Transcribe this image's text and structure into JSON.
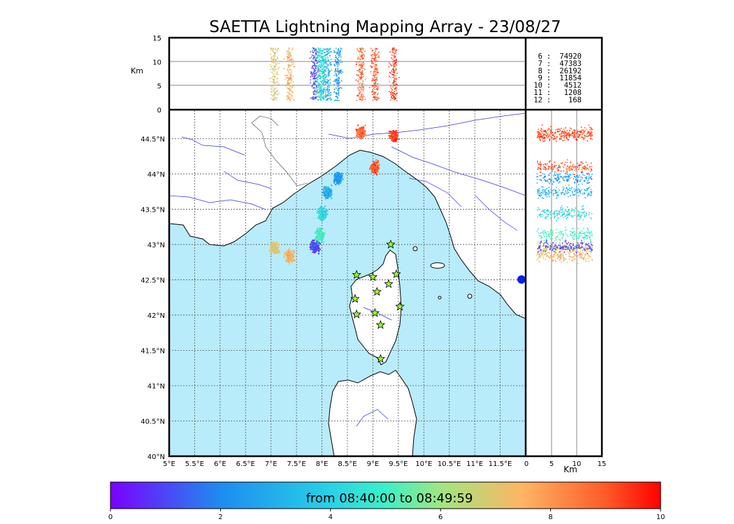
{
  "title": "SAETTA Lightning Mapping Array - 23/08/27",
  "colorbar": {
    "label": "from 08:40:00 to 08:49:59",
    "ticks": [
      "0",
      "2",
      "4",
      "6",
      "8",
      "10"
    ],
    "range": [
      0,
      10
    ]
  },
  "colors": {
    "sea": "#b8ecfb",
    "coast": "#000000",
    "river": "#3333dd",
    "grid": "#555555",
    "station_fill": "#99ff33",
    "legend_highlight": "#ff0000"
  },
  "chart_data": [
    {
      "type": "scatter",
      "panel": "map",
      "description_free": true,
      "x_ticks": [
        "5°E",
        "5.5°E",
        "6°E",
        "6.5°E",
        "7°E",
        "7.5°E",
        "8°E",
        "8.5°E",
        "9°E",
        "9.5°E",
        "10°E",
        "10.5°E",
        "11°E",
        "11.5°E"
      ],
      "y_ticks": [
        "40°N",
        "40.5°N",
        "41°N",
        "41.5°N",
        "42°N",
        "42.5°N",
        "43°N",
        "43.5°N",
        "44°N",
        "44.5°N"
      ],
      "xlim": [
        5.0,
        12.0
      ],
      "ylim": [
        40.0,
        44.9
      ],
      "grid": true,
      "stations": [
        {
          "lon": 9.35,
          "lat": 43.0
        },
        {
          "lon": 8.68,
          "lat": 42.57
        },
        {
          "lon": 9.0,
          "lat": 42.54
        },
        {
          "lon": 9.46,
          "lat": 42.58
        },
        {
          "lon": 9.31,
          "lat": 42.44
        },
        {
          "lon": 9.08,
          "lat": 42.33
        },
        {
          "lon": 8.65,
          "lat": 42.23
        },
        {
          "lon": 9.53,
          "lat": 42.12
        },
        {
          "lon": 8.68,
          "lat": 42.01
        },
        {
          "lon": 9.04,
          "lat": 42.03
        },
        {
          "lon": 9.15,
          "lat": 41.86
        },
        {
          "lon": 9.15,
          "lat": 41.38
        }
      ],
      "clusters": [
        {
          "lon": 7.35,
          "lat": 42.85,
          "time": 7.5
        },
        {
          "lon": 7.05,
          "lat": 42.95,
          "time": 7.0
        },
        {
          "lon": 7.85,
          "lat": 42.98,
          "time": 1.0
        },
        {
          "lon": 7.95,
          "lat": 43.15,
          "time": 5.0
        },
        {
          "lon": 8.0,
          "lat": 43.45,
          "time": 4.2
        },
        {
          "lon": 8.1,
          "lat": 43.75,
          "time": 3.0
        },
        {
          "lon": 8.3,
          "lat": 43.95,
          "time": 2.5
        },
        {
          "lon": 9.03,
          "lat": 44.1,
          "time": 9.0
        },
        {
          "lon": 8.75,
          "lat": 44.6,
          "time": 8.8
        },
        {
          "lon": 9.4,
          "lat": 44.55,
          "time": 9.2
        }
      ]
    },
    {
      "type": "scatter",
      "panel": "lon-altitude",
      "ylabel": "Km",
      "y_ticks": [
        "0",
        "5",
        "10",
        "15"
      ],
      "ylim": [
        0,
        15
      ],
      "legend": {
        "rows": [
          {
            "n": "6",
            "count": "74920"
          },
          {
            "n": "7",
            "count": "47383"
          },
          {
            "n": "8",
            "count": "26192"
          },
          {
            "n": "9",
            "count": "11854"
          },
          {
            "n": "10",
            "count": "4512"
          },
          {
            "n": "11",
            "count": "1208"
          },
          {
            "n": "12",
            "count": "168"
          }
        ],
        "separator": ":"
      }
    },
    {
      "type": "scatter",
      "panel": "altitude-lat",
      "xlabel": "Km",
      "x_ticks": [
        "0",
        "5",
        "10",
        "15"
      ],
      "xlim": [
        0,
        15
      ]
    }
  ]
}
